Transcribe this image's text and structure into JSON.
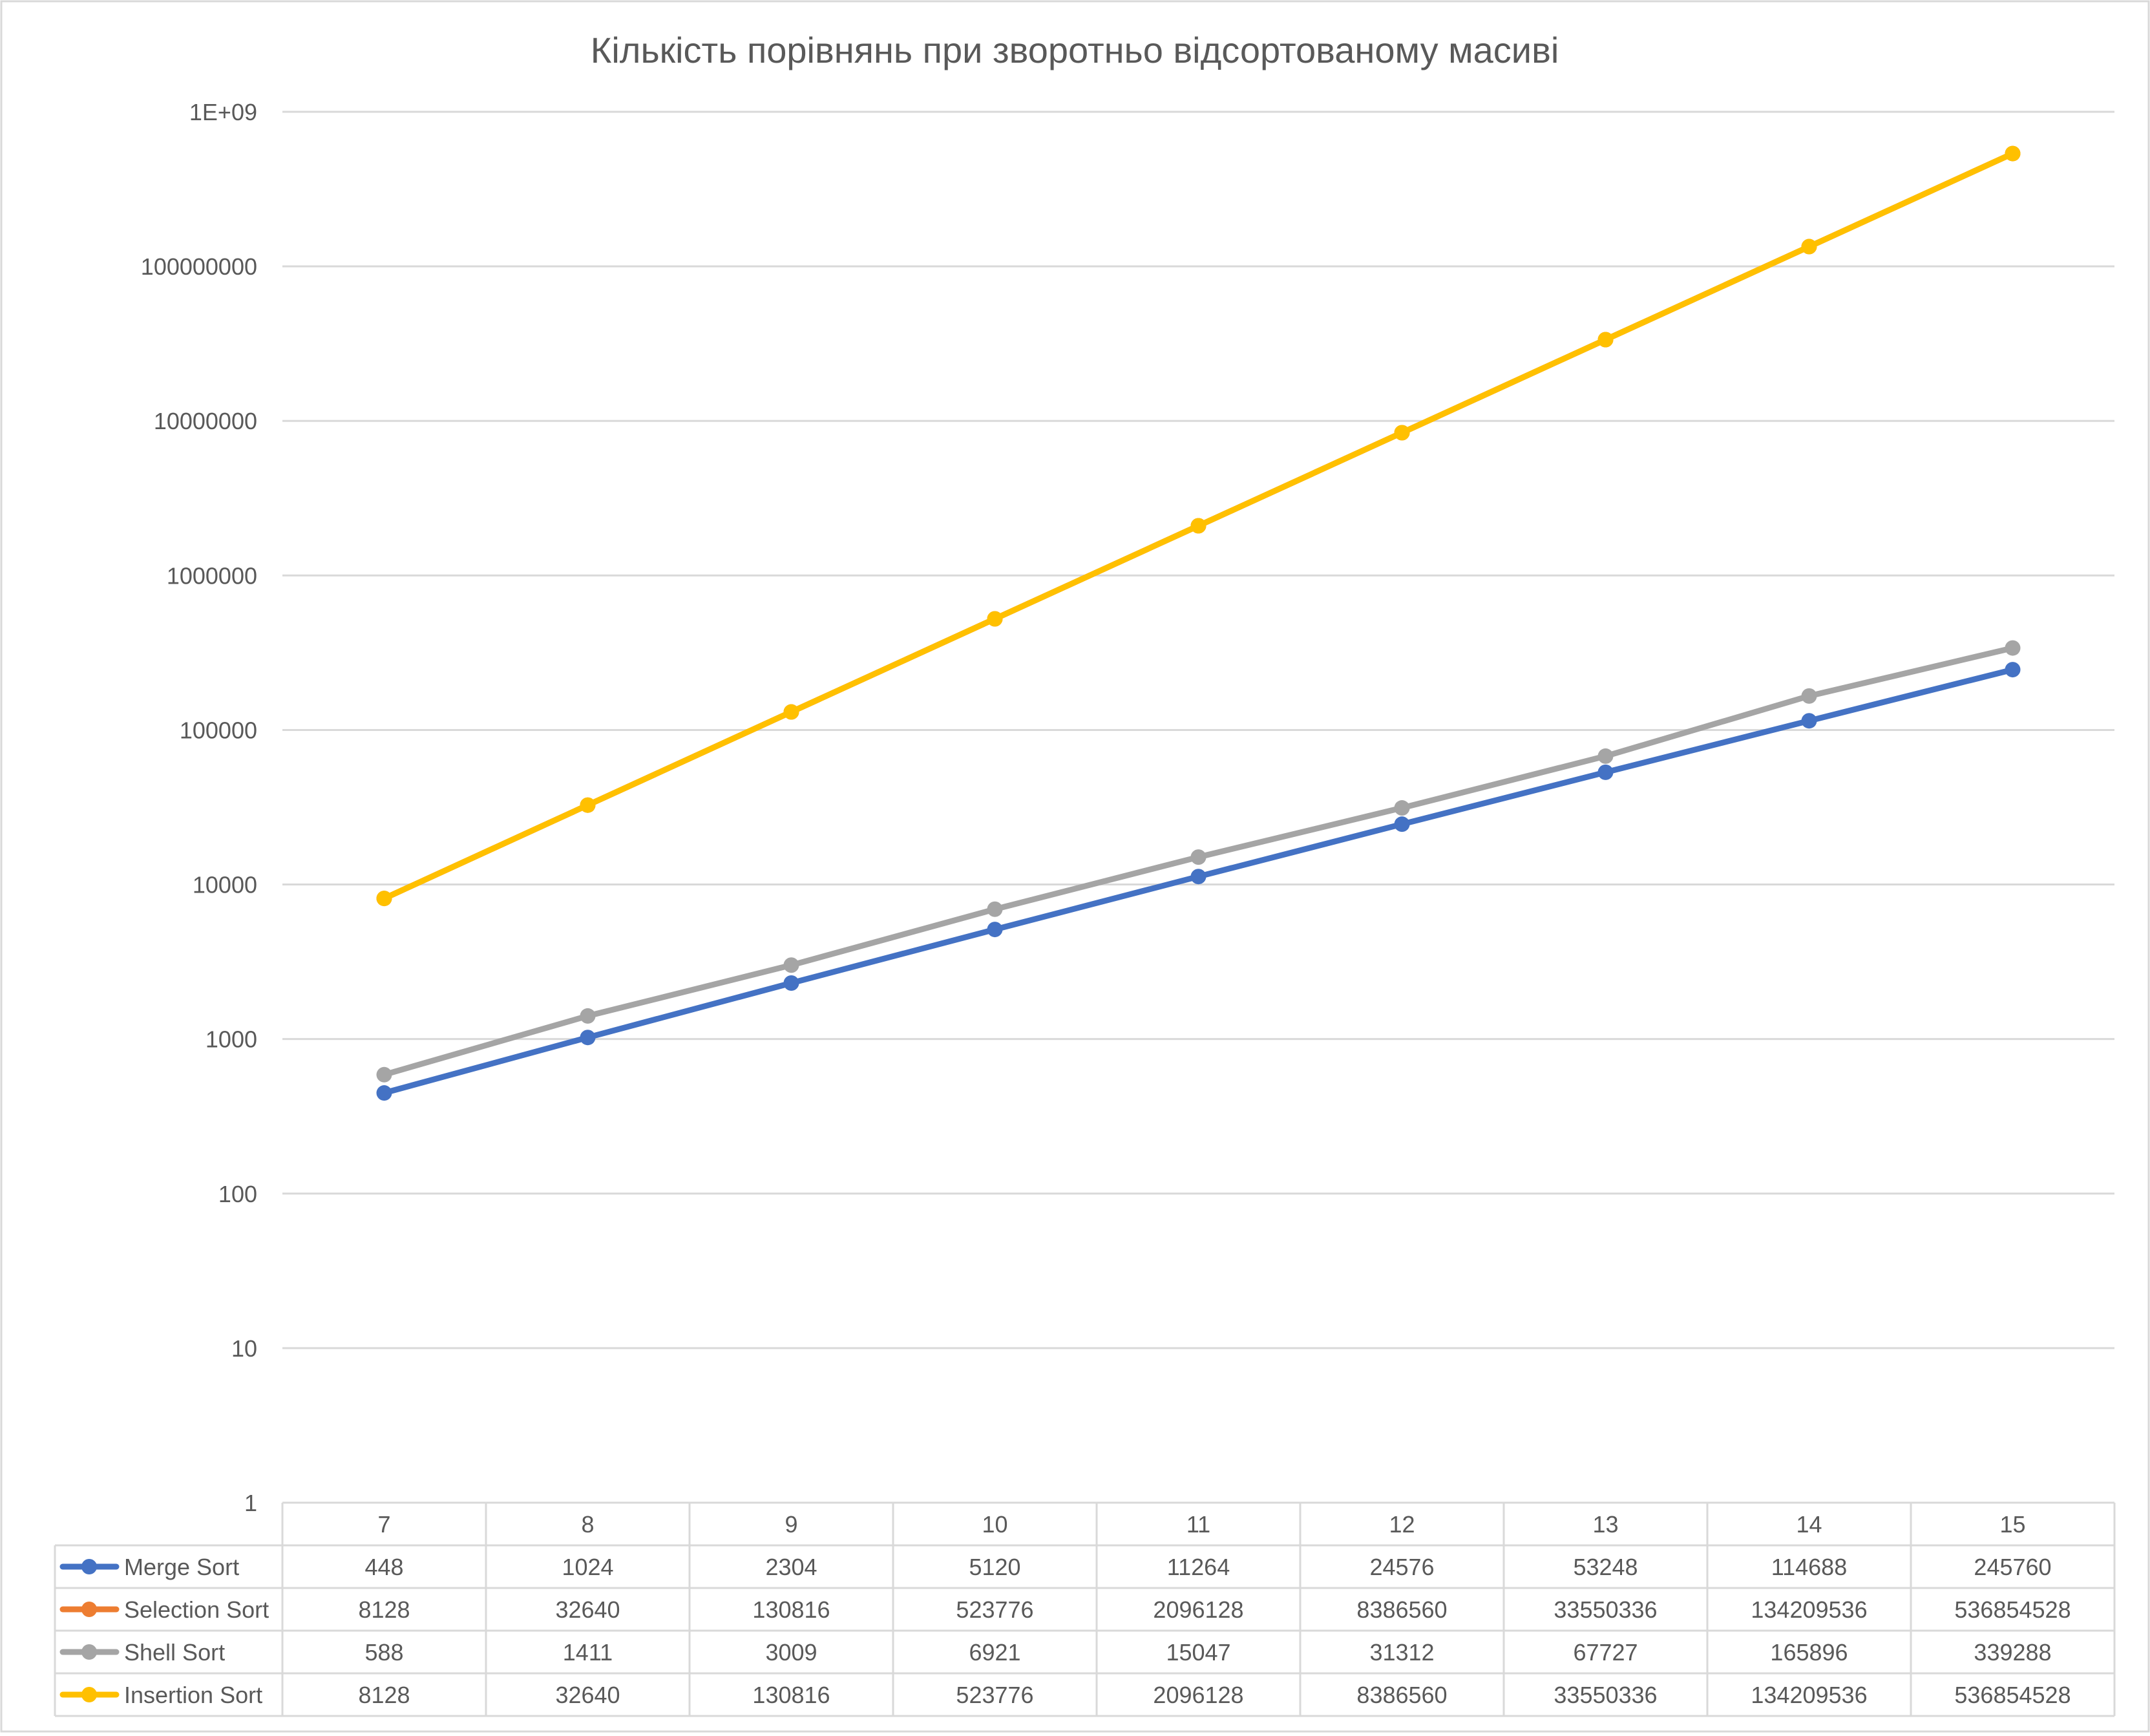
{
  "chart_data": {
    "type": "line",
    "title": "Кількість порівнянь при зворотньо відсортованому масиві",
    "xlabel": "",
    "ylabel": "",
    "y_scale": "log",
    "ylim": [
      1,
      1000000000
    ],
    "y_ticks": [
      "1",
      "10",
      "100",
      "1000",
      "10000",
      "100000",
      "1000000",
      "10000000",
      "100000000",
      "1E+09"
    ],
    "categories": [
      "7",
      "8",
      "9",
      "10",
      "11",
      "12",
      "13",
      "14",
      "15"
    ],
    "grid": true,
    "legend": "data-table-bottom",
    "series": [
      {
        "name": "Merge Sort",
        "color": "#4472C4",
        "values": [
          448,
          1024,
          2304,
          5120,
          11264,
          24576,
          53248,
          114688,
          245760
        ]
      },
      {
        "name": "Selection Sort",
        "color": "#ED7D31",
        "values": [
          8128,
          32640,
          130816,
          523776,
          2096128,
          8386560,
          33550336,
          134209536,
          536854528
        ]
      },
      {
        "name": "Shell Sort",
        "color": "#A5A5A5",
        "values": [
          588,
          1411,
          3009,
          6921,
          15047,
          31312,
          67727,
          165896,
          339288
        ]
      },
      {
        "name": "Insertion Sort",
        "color": "#FFC000",
        "values": [
          8128,
          32640,
          130816,
          523776,
          2096128,
          8386560,
          33550336,
          134209536,
          536854528
        ]
      }
    ]
  }
}
